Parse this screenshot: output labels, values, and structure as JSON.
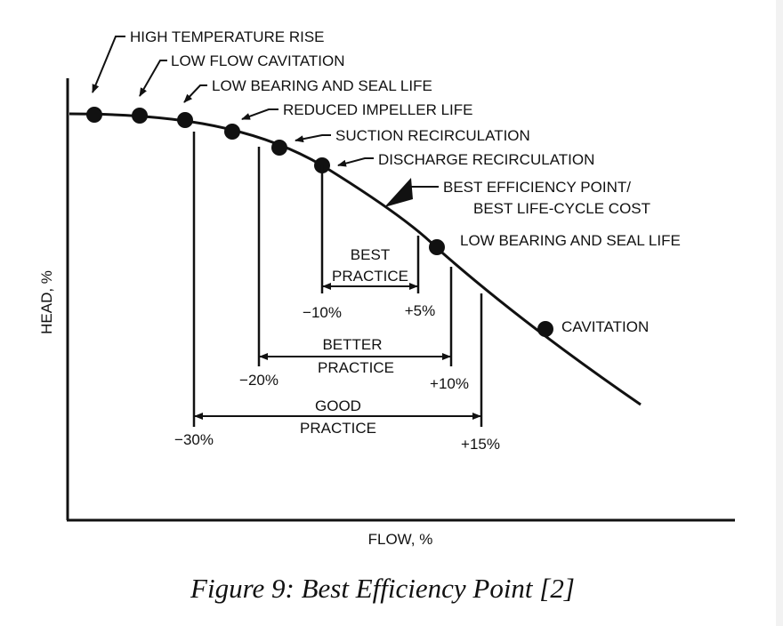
{
  "axis": {
    "x_label": "FLOW, %",
    "y_label": "HEAD, %"
  },
  "points": [
    {
      "label": "HIGH TEMPERATURE RISE"
    },
    {
      "label": "LOW FLOW CAVITATION"
    },
    {
      "label": "LOW BEARING AND SEAL LIFE"
    },
    {
      "label": "REDUCED IMPELLER LIFE"
    },
    {
      "label": "SUCTION RECIRCULATION"
    },
    {
      "label": "DISCHARGE RECIRCULATION"
    },
    {
      "label": "LOW BEARING AND SEAL LIFE"
    },
    {
      "label": "CAVITATION"
    }
  ],
  "bep": {
    "line1": "BEST EFFICIENCY POINT/",
    "line2": "BEST LIFE-CYCLE COST"
  },
  "ranges": {
    "best": {
      "line1": "BEST",
      "line2": "PRACTICE",
      "low": "−10%",
      "high": "+5%"
    },
    "better": {
      "line1": "BETTER",
      "line2": "PRACTICE",
      "low": "−20%",
      "high": "+10%"
    },
    "good": {
      "line1": "GOOD",
      "line2": "PRACTICE",
      "low": "−30%",
      "high": "+15%"
    }
  },
  "caption": "Figure 9: Best Efficiency Point [2]"
}
